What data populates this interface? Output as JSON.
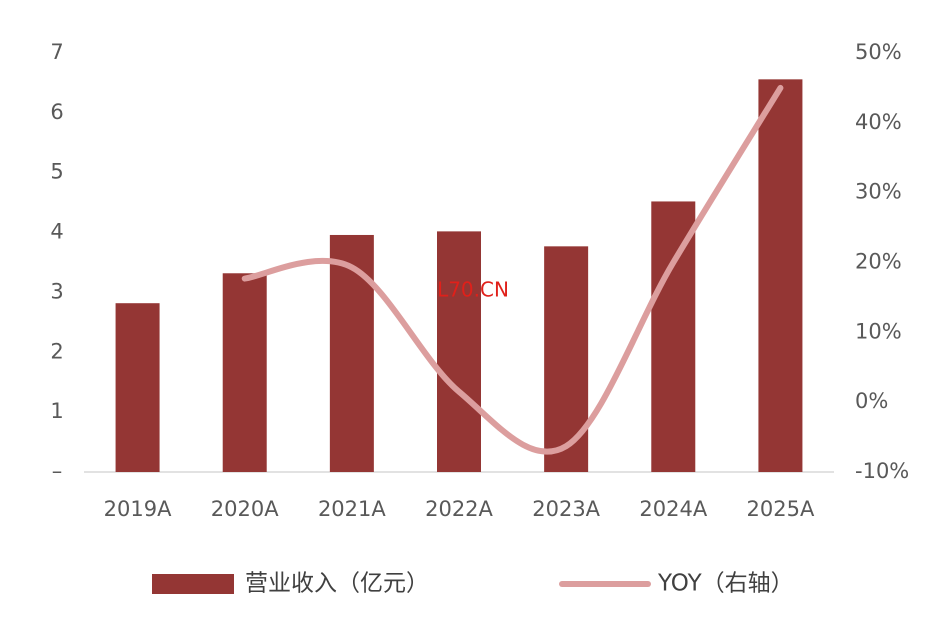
{
  "chart_data": {
    "type": "bar-line",
    "categories": [
      "2019A",
      "2020A",
      "2021A",
      "2022A",
      "2023A",
      "2024A",
      "2025A"
    ],
    "series": [
      {
        "name": "营业收入（亿元）",
        "type": "bar",
        "color": "#943634",
        "values": [
          2.82,
          3.32,
          3.96,
          4.02,
          3.77,
          4.52,
          6.56
        ]
      },
      {
        "name": "YOY（右轴）",
        "type": "line",
        "axis": "y2",
        "color": "#dc9e9e",
        "values": [
          null,
          17.7,
          19.3,
          1.5,
          -6.3,
          20,
          45
        ]
      }
    ],
    "ylim": [
      0,
      7
    ],
    "yticks": [
      {
        "value": 0,
        "label": "–"
      },
      1,
      2,
      3,
      4,
      5,
      6,
      7
    ],
    "y2lim": [
      -10,
      50
    ],
    "y2ticks": [
      {
        "value": -10,
        "label": "-10%"
      },
      {
        "value": 0,
        "label": "0%"
      },
      {
        "value": 10,
        "label": "10%"
      },
      {
        "value": 20,
        "label": "20%"
      },
      {
        "value": 30,
        "label": "30%"
      },
      {
        "value": 40,
        "label": "40%"
      },
      {
        "value": 50,
        "label": "50%"
      }
    ],
    "annotation": "L70.CN",
    "legend": "bottom"
  }
}
